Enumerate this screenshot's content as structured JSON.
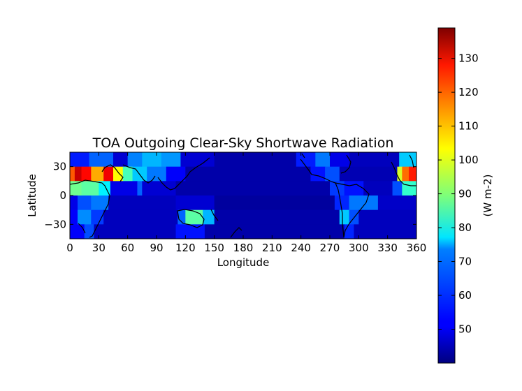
{
  "chart_data": {
    "type": "heatmap",
    "title": "TOA Outgoing Clear-Sky Shortwave Radiation",
    "xlabel": "Longitude",
    "ylabel": "Latitude",
    "xlim": [
      0,
      360
    ],
    "ylim": [
      -45,
      45
    ],
    "xticks": [
      "0",
      "30",
      "60",
      "90",
      "120",
      "150",
      "180",
      "210",
      "240",
      "270",
      "300",
      "330",
      "360"
    ],
    "yticks": [
      "30",
      "0",
      "−30"
    ],
    "colorbar": {
      "label": "(W m-2)",
      "range": [
        40,
        139
      ],
      "ticks": [
        "50",
        "60",
        "70",
        "80",
        "90",
        "100",
        "110",
        "120",
        "130"
      ],
      "colormap": "jet"
    },
    "lat_bands": [
      {
        "lat": [
          30,
          45
        ],
        "segments": [
          {
            "x": [
              0,
              20
            ],
            "v": 55
          },
          {
            "x": [
              20,
              45
            ],
            "v": 62
          },
          {
            "x": [
              45,
              60
            ],
            "v": 48
          },
          {
            "x": [
              60,
              75
            ],
            "v": 65
          },
          {
            "x": [
              75,
              95
            ],
            "v": 70
          },
          {
            "x": [
              95,
              115
            ],
            "v": 67
          },
          {
            "x": [
              115,
              150
            ],
            "v": 48
          },
          {
            "x": [
              150,
              235
            ],
            "v": 44
          },
          {
            "x": [
              235,
              255
            ],
            "v": 55
          },
          {
            "x": [
              255,
              270
            ],
            "v": 64
          },
          {
            "x": [
              270,
              290
            ],
            "v": 50
          },
          {
            "x": [
              290,
              342
            ],
            "v": 46
          },
          {
            "x": [
              342,
              360
            ],
            "v": 72
          }
        ]
      },
      {
        "lat": [
          15,
          30
        ],
        "segments": [
          {
            "x": [
              0,
              5
            ],
            "v": 118
          },
          {
            "x": [
              5,
              12
            ],
            "v": 132
          },
          {
            "x": [
              12,
              22
            ],
            "v": 126
          },
          {
            "x": [
              22,
              35
            ],
            "v": 110
          },
          {
            "x": [
              35,
              45
            ],
            "v": 128
          },
          {
            "x": [
              45,
              55
            ],
            "v": 102
          },
          {
            "x": [
              55,
              65
            ],
            "v": 84
          },
          {
            "x": [
              65,
              80
            ],
            "v": 72
          },
          {
            "x": [
              80,
              100
            ],
            "v": 64
          },
          {
            "x": [
              100,
              120
            ],
            "v": 52
          },
          {
            "x": [
              120,
              250
            ],
            "v": 44
          },
          {
            "x": [
              250,
              265
            ],
            "v": 54
          },
          {
            "x": [
              265,
              280
            ],
            "v": 60
          },
          {
            "x": [
              280,
              340
            ],
            "v": 45
          },
          {
            "x": [
              340,
              345
            ],
            "v": 98
          },
          {
            "x": [
              345,
              352
            ],
            "v": 116
          },
          {
            "x": [
              352,
              360
            ],
            "v": 124
          }
        ]
      },
      {
        "lat": [
          0,
          15
        ],
        "segments": [
          {
            "x": [
              0,
              12
            ],
            "v": 88
          },
          {
            "x": [
              12,
              30
            ],
            "v": 86
          },
          {
            "x": [
              30,
              42
            ],
            "v": 76
          },
          {
            "x": [
              42,
              70
            ],
            "v": 50
          },
          {
            "x": [
              70,
              75
            ],
            "v": 62
          },
          {
            "x": [
              75,
              110
            ],
            "v": 48
          },
          {
            "x": [
              110,
              270
            ],
            "v": 44
          },
          {
            "x": [
              270,
              285
            ],
            "v": 58
          },
          {
            "x": [
              285,
              305
            ],
            "v": 54
          },
          {
            "x": [
              305,
              335
            ],
            "v": 46
          },
          {
            "x": [
              335,
              345
            ],
            "v": 60
          },
          {
            "x": [
              345,
              360
            ],
            "v": 82
          }
        ]
      },
      {
        "lat": [
          -15,
          0
        ],
        "segments": [
          {
            "x": [
              0,
              8
            ],
            "v": 50
          },
          {
            "x": [
              8,
              22
            ],
            "v": 60
          },
          {
            "x": [
              22,
              40
            ],
            "v": 64
          },
          {
            "x": [
              40,
              110
            ],
            "v": 46
          },
          {
            "x": [
              110,
              150
            ],
            "v": 48
          },
          {
            "x": [
              150,
              275
            ],
            "v": 43
          },
          {
            "x": [
              275,
              290
            ],
            "v": 56
          },
          {
            "x": [
              290,
              320
            ],
            "v": 64
          },
          {
            "x": [
              320,
              360
            ],
            "v": 47
          }
        ]
      },
      {
        "lat": [
          -30,
          -15
        ],
        "segments": [
          {
            "x": [
              0,
              8
            ],
            "v": 52
          },
          {
            "x": [
              8,
              22
            ],
            "v": 66
          },
          {
            "x": [
              22,
              35
            ],
            "v": 58
          },
          {
            "x": [
              35,
              112
            ],
            "v": 46
          },
          {
            "x": [
              112,
              120
            ],
            "v": 62
          },
          {
            "x": [
              120,
              138
            ],
            "v": 86
          },
          {
            "x": [
              138,
              150
            ],
            "v": 70
          },
          {
            "x": [
              150,
              280
            ],
            "v": 44
          },
          {
            "x": [
              280,
              290
            ],
            "v": 72
          },
          {
            "x": [
              290,
              300
            ],
            "v": 60
          },
          {
            "x": [
              300,
              360
            ],
            "v": 46
          }
        ]
      },
      {
        "lat": [
          -45,
          -30
        ],
        "segments": [
          {
            "x": [
              0,
              15
            ],
            "v": 52
          },
          {
            "x": [
              15,
              25
            ],
            "v": 60
          },
          {
            "x": [
              25,
              110
            ],
            "v": 46
          },
          {
            "x": [
              110,
              140
            ],
            "v": 54
          },
          {
            "x": [
              140,
              285
            ],
            "v": 44
          },
          {
            "x": [
              285,
              295
            ],
            "v": 56
          },
          {
            "x": [
              295,
              360
            ],
            "v": 46
          }
        ]
      }
    ]
  }
}
